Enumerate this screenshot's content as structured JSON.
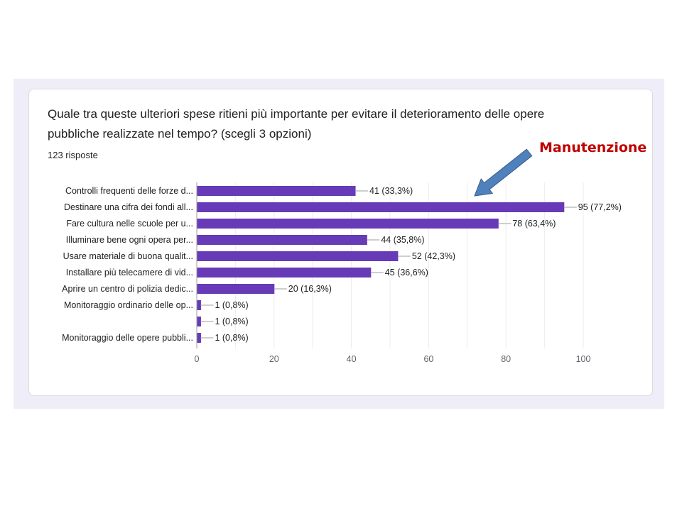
{
  "question": {
    "title": "Quale tra queste ulteriori spese ritieni più importante per evitare il deterioramento delle opere pubbliche realizzate nel tempo? (scegli 3 opzioni)",
    "responses": "123 risposte"
  },
  "annotation": {
    "text": "Manutenzione",
    "text_color": "#c00000",
    "arrow_color": "#4f81bd"
  },
  "colors": {
    "bar": "#673ab7",
    "page_band": "#efedf8"
  },
  "chart_data": {
    "type": "bar",
    "orientation": "horizontal",
    "categories": [
      "Controlli frequenti delle forze d...",
      "Destinare una cifra dei fondi all...",
      "Fare cultura nelle scuole per u...",
      "Illuminare bene ogni opera per...",
      "Usare materiale di buona qualit...",
      "Installare più telecamere di vid...",
      "Aprire un centro di polizia dedic...",
      "Monitoraggio ordinario delle op...",
      "",
      "Monitoraggio delle opere pubbli..."
    ],
    "values": [
      41,
      95,
      78,
      44,
      52,
      45,
      20,
      1,
      1,
      1
    ],
    "data_labels": [
      "41 (33,3%)",
      "95 (77,2%)",
      "78 (63,4%)",
      "44 (35,8%)",
      "52 (42,3%)",
      "45 (36,6%)",
      "20 (16,3%)",
      "1 (0,8%)",
      "1 (0,8%)",
      "1 (0,8%)"
    ],
    "xlim": [
      0,
      100
    ],
    "xticks": [
      0,
      20,
      40,
      60,
      80,
      100
    ],
    "grid": true
  }
}
